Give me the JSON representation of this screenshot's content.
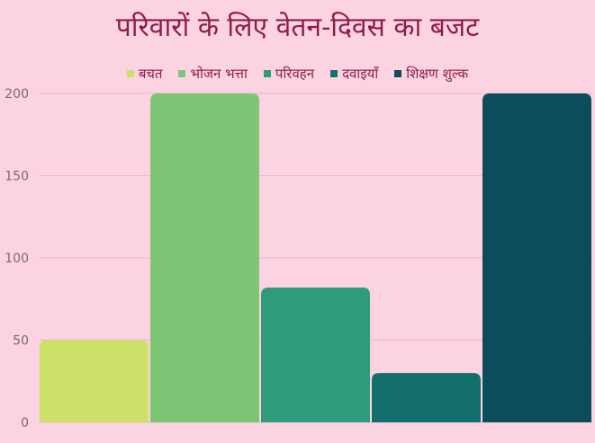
{
  "chart_data": {
    "type": "bar",
    "title": "परिवारों के लिए वेतन-दिवस का बजट",
    "categories": [
      "बचत",
      "भोजन भत्ता",
      "परिवहन",
      "दवाइयाँ",
      "शिक्षण शुल्क"
    ],
    "values": [
      50,
      200,
      82,
      30,
      200
    ],
    "colors": [
      "#cde06a",
      "#7fc576",
      "#2f9a7c",
      "#126f6c",
      "#0b4d5c"
    ],
    "ylim": [
      0,
      200
    ],
    "yticks": [
      0,
      50,
      100,
      150,
      200
    ],
    "grid": true,
    "legend_position": "top"
  }
}
